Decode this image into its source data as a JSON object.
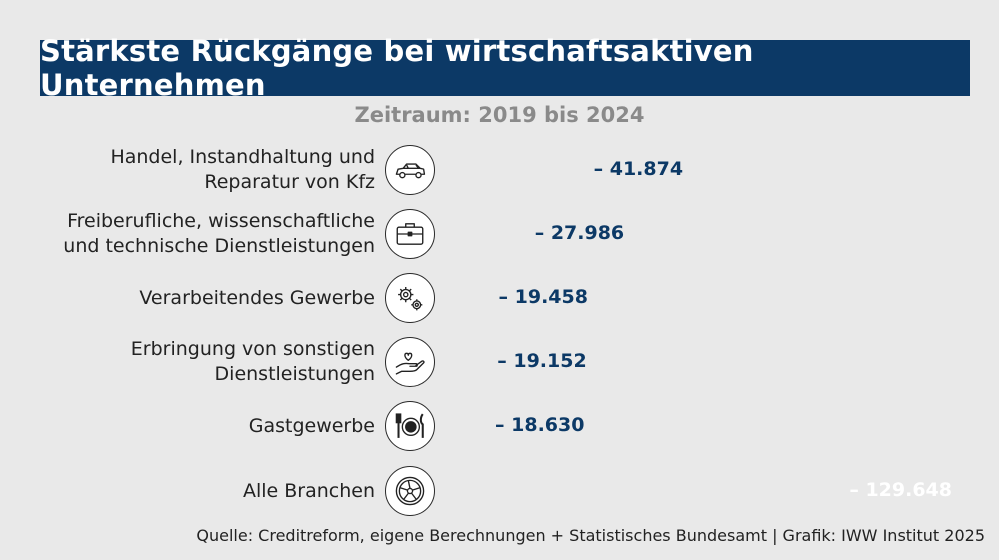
{
  "title": "Stärkste Rückgänge bei wirtschaftsaktiven Unternehmen",
  "subtitle": "Zeitraum: 2019 bis 2024",
  "source": "Quelle: Creditreform, eigene Berechnungen + Statistisches Bundesamt | Grafik: IWW Institut 2025",
  "colors": {
    "bar": "#0c3966",
    "title_bg": "#0c3966",
    "background": "#e9e9e9",
    "subtitle": "#8a8a8a"
  },
  "chart_data": {
    "type": "bar",
    "orientation": "horizontal",
    "categories": [
      "Handel, Instandhaltung und Reparatur von Kfz",
      "Freiberufliche, wissenschaftliche und technische Dienstleistungen",
      "Verarbeitendes Gewerbe",
      "Erbringung von sonstigen Dienstleistungen",
      "Gastgewerbe",
      "Alle Branchen"
    ],
    "category_lines": [
      [
        "Handel, Instandhaltung und",
        "Reparatur von Kfz"
      ],
      [
        "Freiberufliche, wissenschaftliche",
        "und technische Dienstleistungen"
      ],
      [
        "Verarbeitendes Gewerbe"
      ],
      [
        "Erbringung von sonstigen",
        "Dienstleistungen"
      ],
      [
        "Gastgewerbe"
      ],
      [
        "Alle Branchen"
      ]
    ],
    "values": [
      -41874,
      -27986,
      -19458,
      -19152,
      -18630,
      -129648
    ],
    "value_labels": [
      "– 41.874",
      "– 27.986",
      "– 19.458",
      "– 19.152",
      "– 18.630",
      "– 129.648"
    ],
    "icons": [
      "car-icon",
      "briefcase-icon",
      "gears-icon",
      "hand-icon",
      "plate-cutlery-icon",
      "wheel-icon"
    ],
    "xlabel": "",
    "ylabel": "",
    "grid": false,
    "legend": "none"
  }
}
